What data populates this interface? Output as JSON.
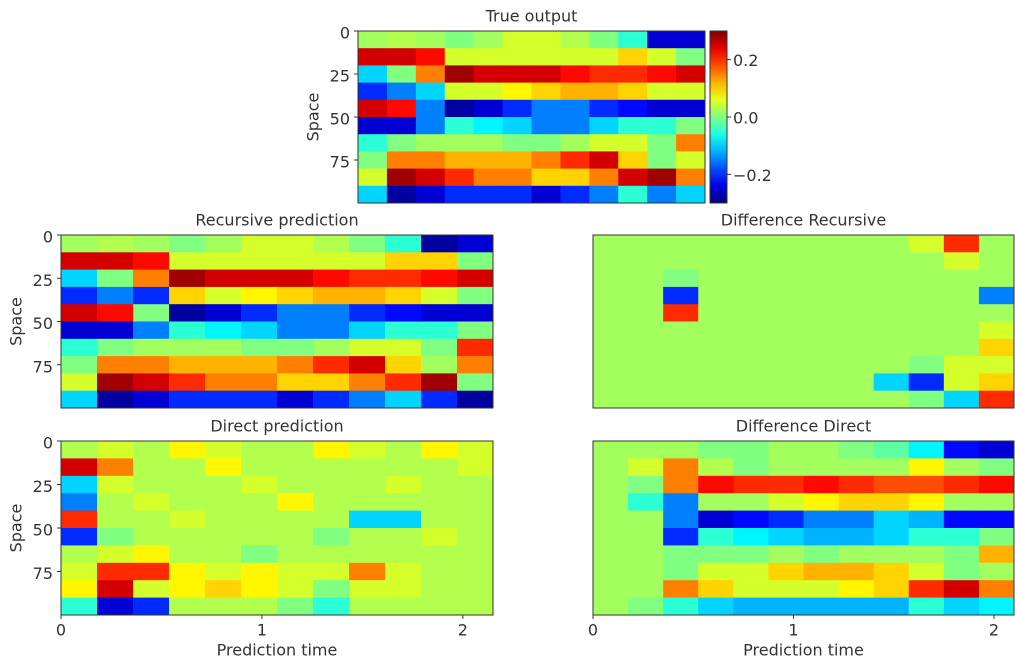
{
  "chart_data": [
    {
      "type": "heatmap",
      "title": "True output",
      "ylabel": "Space",
      "ylim": [
        100,
        0
      ],
      "yticks": [
        0,
        25,
        50,
        75
      ],
      "xlim": [
        0,
        2.15
      ],
      "colormap": "jet",
      "clim": [
        -0.3,
        0.3
      ],
      "colorbar": true,
      "cbar_ticks": [
        0.2,
        {
          "value": 0,
          "label": "0.0"
        },
        {
          "value": -0.2,
          "label": "−0.2"
        }
      ],
      "z": [
        [
          0.02,
          0.03,
          0.02,
          0.0,
          0.02,
          0.05,
          0.05,
          0.03,
          0.0,
          -0.05,
          -0.25,
          -0.25
        ],
        [
          0.25,
          0.25,
          0.22,
          0.05,
          0.05,
          0.05,
          0.05,
          0.05,
          0.05,
          0.1,
          0.05,
          0.0
        ],
        [
          -0.1,
          0.0,
          0.15,
          0.28,
          0.25,
          0.25,
          0.25,
          0.22,
          0.2,
          0.2,
          0.22,
          0.25
        ],
        [
          -0.2,
          -0.15,
          -0.1,
          0.05,
          0.05,
          0.08,
          0.1,
          0.12,
          0.12,
          0.1,
          0.05,
          0.05
        ],
        [
          0.25,
          0.22,
          -0.15,
          -0.28,
          -0.25,
          -0.2,
          -0.15,
          -0.15,
          -0.2,
          -0.22,
          -0.25,
          -0.25
        ],
        [
          -0.25,
          -0.25,
          -0.15,
          -0.05,
          -0.08,
          -0.1,
          -0.15,
          -0.15,
          -0.1,
          -0.05,
          -0.05,
          0.0
        ],
        [
          -0.05,
          0.0,
          0.02,
          0.02,
          0.02,
          0.0,
          0.0,
          0.02,
          0.05,
          0.05,
          0.0,
          0.15
        ],
        [
          0.0,
          0.15,
          0.15,
          0.12,
          0.12,
          0.12,
          0.15,
          0.2,
          0.25,
          0.1,
          0.0,
          0.05
        ],
        [
          0.05,
          0.28,
          0.25,
          0.2,
          0.15,
          0.15,
          0.1,
          0.1,
          0.15,
          0.25,
          0.28,
          0.15
        ],
        [
          -0.1,
          -0.28,
          -0.25,
          -0.2,
          -0.2,
          -0.2,
          -0.25,
          -0.2,
          -0.15,
          -0.05,
          -0.15,
          -0.1
        ]
      ]
    },
    {
      "type": "heatmap",
      "title": "Recursive prediction",
      "ylabel": "Space",
      "ylim": [
        100,
        0
      ],
      "yticks": [
        0,
        25,
        50,
        75
      ],
      "xlim": [
        0,
        2.15
      ],
      "colormap": "jet",
      "clim": [
        -0.3,
        0.3
      ],
      "z": [
        [
          0.02,
          0.03,
          0.02,
          0.0,
          0.02,
          0.05,
          0.05,
          0.03,
          0.0,
          -0.05,
          -0.28,
          -0.25
        ],
        [
          0.25,
          0.25,
          0.22,
          0.05,
          0.05,
          0.05,
          0.05,
          0.05,
          0.05,
          0.1,
          0.1,
          0.0
        ],
        [
          -0.1,
          0.0,
          0.15,
          0.28,
          0.25,
          0.25,
          0.25,
          0.22,
          0.2,
          0.2,
          0.22,
          0.25
        ],
        [
          -0.2,
          -0.15,
          -0.2,
          0.1,
          0.05,
          0.08,
          0.1,
          0.12,
          0.12,
          0.1,
          0.05,
          0.0
        ],
        [
          0.25,
          0.22,
          0.0,
          -0.28,
          -0.25,
          -0.2,
          -0.15,
          -0.15,
          -0.2,
          -0.22,
          -0.25,
          -0.25
        ],
        [
          -0.25,
          -0.25,
          -0.15,
          -0.05,
          -0.08,
          -0.1,
          -0.15,
          -0.15,
          -0.1,
          -0.05,
          -0.05,
          0.0
        ],
        [
          -0.05,
          0.0,
          0.02,
          0.02,
          0.02,
          0.0,
          0.0,
          0.02,
          0.05,
          0.05,
          0.0,
          0.2
        ],
        [
          0.0,
          0.15,
          0.15,
          0.12,
          0.12,
          0.12,
          0.15,
          0.2,
          0.25,
          0.1,
          0.02,
          0.15
        ],
        [
          0.05,
          0.28,
          0.25,
          0.2,
          0.15,
          0.15,
          0.1,
          0.1,
          0.15,
          0.2,
          0.28,
          0.0
        ],
        [
          -0.1,
          -0.28,
          -0.25,
          -0.2,
          -0.2,
          -0.2,
          -0.25,
          -0.2,
          -0.15,
          -0.1,
          -0.2,
          -0.28
        ]
      ]
    },
    {
      "type": "heatmap",
      "title": "Difference Recursive",
      "ylim": [
        100,
        0
      ],
      "xlim": [
        0,
        2.1
      ],
      "colormap": "jet",
      "clim": [
        -0.3,
        0.3
      ],
      "z": [
        [
          0.02,
          0.02,
          0.02,
          0.02,
          0.02,
          0.02,
          0.02,
          0.02,
          0.02,
          0.05,
          0.2,
          0.02
        ],
        [
          0.02,
          0.02,
          0.02,
          0.02,
          0.02,
          0.02,
          0.02,
          0.02,
          0.02,
          0.02,
          0.05,
          0.02
        ],
        [
          0.02,
          0.02,
          0.0,
          0.02,
          0.02,
          0.02,
          0.02,
          0.02,
          0.02,
          0.02,
          0.02,
          0.02
        ],
        [
          0.02,
          0.02,
          -0.2,
          0.02,
          0.02,
          0.02,
          0.02,
          0.02,
          0.02,
          0.02,
          0.02,
          -0.15
        ],
        [
          0.02,
          0.02,
          0.2,
          0.02,
          0.02,
          0.02,
          0.02,
          0.02,
          0.02,
          0.02,
          0.02,
          0.02
        ],
        [
          0.02,
          0.02,
          0.02,
          0.02,
          0.02,
          0.02,
          0.02,
          0.02,
          0.02,
          0.02,
          0.02,
          0.05
        ],
        [
          0.02,
          0.02,
          0.02,
          0.02,
          0.02,
          0.02,
          0.02,
          0.02,
          0.02,
          0.02,
          0.02,
          0.1
        ],
        [
          0.02,
          0.02,
          0.02,
          0.02,
          0.02,
          0.02,
          0.02,
          0.02,
          0.02,
          0.0,
          0.05,
          0.05
        ],
        [
          0.02,
          0.02,
          0.02,
          0.02,
          0.02,
          0.02,
          0.02,
          0.02,
          -0.1,
          -0.2,
          0.05,
          0.1
        ],
        [
          0.02,
          0.02,
          0.02,
          0.02,
          0.02,
          0.02,
          0.02,
          0.02,
          0.02,
          0.0,
          -0.1,
          0.2
        ]
      ]
    },
    {
      "type": "heatmap",
      "title": "Direct prediction",
      "ylabel": "Space",
      "xlabel": "Prediction time",
      "ylim": [
        100,
        0
      ],
      "yticks": [
        0,
        25,
        50,
        75
      ],
      "xlim": [
        0,
        2.15
      ],
      "xticks": [
        0,
        1,
        2
      ],
      "colormap": "jet",
      "clim": [
        -0.3,
        0.3
      ],
      "z": [
        [
          0.03,
          0.05,
          0.03,
          0.08,
          0.05,
          0.03,
          0.03,
          0.08,
          0.05,
          0.03,
          0.08,
          0.05
        ],
        [
          0.25,
          0.15,
          0.03,
          0.03,
          0.08,
          0.03,
          0.03,
          0.03,
          0.03,
          0.03,
          0.03,
          0.05
        ],
        [
          -0.1,
          0.05,
          0.03,
          0.03,
          0.03,
          0.05,
          0.03,
          0.03,
          0.03,
          0.05,
          0.03,
          0.03
        ],
        [
          -0.15,
          0.03,
          0.05,
          0.03,
          0.03,
          0.03,
          0.08,
          0.03,
          0.03,
          0.03,
          0.03,
          0.03
        ],
        [
          0.2,
          0.03,
          0.03,
          0.05,
          0.03,
          0.03,
          0.03,
          0.03,
          -0.1,
          -0.1,
          0.03,
          0.03
        ],
        [
          -0.2,
          0.0,
          0.03,
          0.03,
          0.03,
          0.03,
          0.03,
          0.0,
          0.03,
          0.03,
          0.05,
          0.03
        ],
        [
          0.03,
          0.05,
          0.08,
          0.03,
          0.03,
          0.0,
          0.03,
          0.03,
          0.03,
          0.03,
          0.03,
          0.03
        ],
        [
          0.05,
          0.2,
          0.2,
          0.08,
          0.05,
          0.08,
          0.05,
          0.05,
          0.15,
          0.05,
          0.03,
          0.03
        ],
        [
          0.08,
          0.25,
          0.05,
          0.08,
          0.1,
          0.08,
          0.05,
          0.0,
          0.05,
          0.05,
          0.03,
          0.03
        ],
        [
          -0.05,
          -0.25,
          -0.2,
          0.03,
          0.03,
          0.03,
          0.0,
          -0.05,
          0.03,
          0.03,
          0.03,
          0.03
        ]
      ]
    },
    {
      "type": "heatmap",
      "title": "Difference Direct",
      "xlabel": "Prediction time",
      "ylim": [
        100,
        0
      ],
      "xlim": [
        0,
        2.1
      ],
      "xticks": [
        0,
        1,
        2
      ],
      "colormap": "jet",
      "clim": [
        -0.3,
        0.3
      ],
      "z": [
        [
          0.02,
          0.02,
          0.02,
          0.0,
          0.0,
          0.02,
          0.02,
          0.0,
          -0.02,
          -0.08,
          -0.22,
          -0.25
        ],
        [
          0.02,
          0.05,
          0.15,
          0.03,
          0.0,
          0.02,
          0.02,
          0.02,
          0.02,
          0.08,
          0.02,
          0.0
        ],
        [
          0.02,
          0.0,
          0.15,
          0.22,
          0.2,
          0.2,
          0.22,
          0.2,
          0.18,
          0.18,
          0.2,
          0.22
        ],
        [
          0.02,
          -0.05,
          -0.15,
          0.02,
          0.02,
          0.05,
          0.08,
          0.1,
          0.1,
          0.08,
          0.02,
          0.02
        ],
        [
          0.02,
          0.02,
          -0.15,
          -0.25,
          -0.22,
          -0.2,
          -0.15,
          -0.15,
          -0.1,
          -0.12,
          -0.22,
          -0.22
        ],
        [
          0.02,
          0.02,
          -0.2,
          -0.05,
          -0.08,
          -0.1,
          -0.12,
          -0.12,
          -0.1,
          -0.05,
          -0.05,
          0.0
        ],
        [
          0.02,
          0.02,
          0.0,
          0.0,
          0.0,
          0.02,
          0.0,
          0.02,
          0.02,
          0.02,
          0.0,
          0.12
        ],
        [
          0.02,
          0.02,
          0.0,
          0.05,
          0.05,
          0.1,
          0.12,
          0.12,
          0.1,
          0.05,
          0.0,
          0.02
        ],
        [
          0.02,
          0.02,
          0.15,
          0.1,
          0.05,
          0.05,
          0.05,
          0.08,
          0.1,
          0.2,
          0.25,
          0.15
        ],
        [
          0.02,
          0.0,
          -0.05,
          -0.1,
          -0.12,
          -0.12,
          -0.12,
          -0.12,
          -0.12,
          -0.05,
          -0.1,
          -0.08
        ]
      ]
    }
  ]
}
